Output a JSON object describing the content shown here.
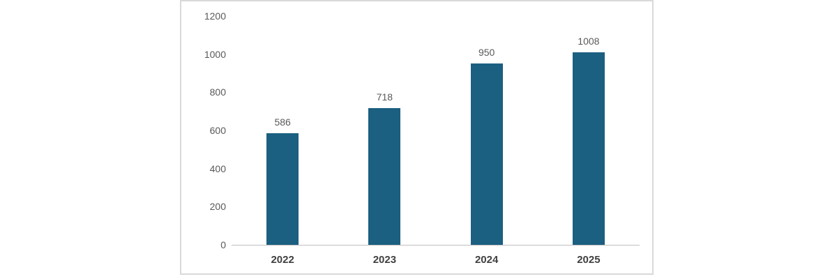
{
  "chart_data": {
    "type": "bar",
    "categories": [
      "2022",
      "2023",
      "2024",
      "2025"
    ],
    "values": [
      586,
      718,
      950,
      1008
    ],
    "title": "",
    "xlabel": "",
    "ylabel": "",
    "ylim": [
      0,
      1200
    ],
    "yticks": [
      0,
      200,
      400,
      600,
      800,
      1000,
      1200
    ],
    "grid": false,
    "legend": false,
    "bar_color": "#1b5f81"
  },
  "colors": {
    "bar": "#1b5f81",
    "tick_label": "#595959",
    "value_label": "#595959",
    "category_label": "#404040",
    "axis_line": "#bfbfbf",
    "panel_border": "#d9d9d9",
    "background": "#ffffff"
  }
}
